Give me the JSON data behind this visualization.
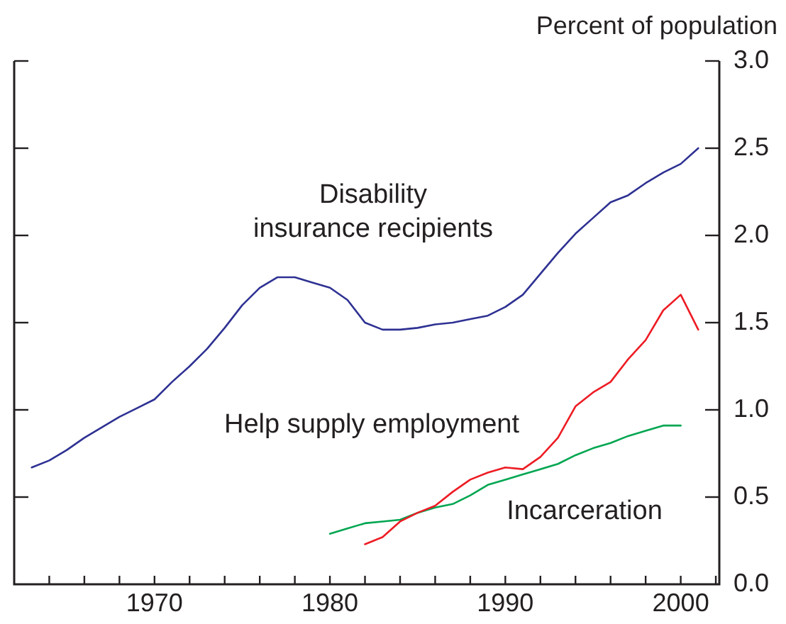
{
  "chart_data": {
    "type": "line",
    "ylabel": "Percent of population",
    "xlim": [
      1962,
      2002.2
    ],
    "xticks": [
      {
        "value": 1964,
        "label": null
      },
      {
        "value": 1966,
        "label": null
      },
      {
        "value": 1968,
        "label": null
      },
      1970,
      {
        "value": 1972,
        "label": null
      },
      {
        "value": 1974,
        "label": null
      },
      {
        "value": 1976,
        "label": null
      },
      {
        "value": 1978,
        "label": null
      },
      1980,
      {
        "value": 1982,
        "label": null
      },
      {
        "value": 1984,
        "label": null
      },
      {
        "value": 1986,
        "label": null
      },
      {
        "value": 1988,
        "label": null
      },
      1990,
      {
        "value": 1992,
        "label": null
      },
      {
        "value": 1994,
        "label": null
      },
      {
        "value": 1996,
        "label": null
      },
      {
        "value": 1998,
        "label": null
      },
      2000,
      {
        "value": 2002,
        "label": null
      }
    ],
    "ylim": [
      0,
      3
    ],
    "yticks": [
      {
        "value": 0,
        "label": "0.0"
      },
      0.5,
      {
        "value": 1,
        "label": "1.0"
      },
      1.5,
      {
        "value": 2,
        "label": "2.0"
      },
      2.5,
      {
        "value": 3,
        "label": "3.0"
      }
    ],
    "grid": false,
    "legend": false,
    "marker": "none",
    "line_style": "solid",
    "series": [
      {
        "name": "Disability insurance recipients",
        "color": "#2e3192",
        "x": [
          1963,
          1964,
          1965,
          1966,
          1967,
          1968,
          1969,
          1970,
          1971,
          1972,
          1973,
          1974,
          1975,
          1976,
          1977,
          1978,
          1979,
          1980,
          1981,
          1982,
          1983,
          1984,
          1985,
          1986,
          1987,
          1988,
          1989,
          1990,
          1991,
          1992,
          1993,
          1994,
          1995,
          1996,
          1997,
          1998,
          1999,
          2000,
          2001
        ],
        "values": [
          0.67,
          0.71,
          0.77,
          0.84,
          0.9,
          0.96,
          1.01,
          1.06,
          1.16,
          1.25,
          1.35,
          1.47,
          1.6,
          1.7,
          1.76,
          1.76,
          1.73,
          1.7,
          1.63,
          1.5,
          1.46,
          1.46,
          1.47,
          1.49,
          1.5,
          1.52,
          1.54,
          1.59,
          1.66,
          1.78,
          1.9,
          2.01,
          2.1,
          2.19,
          2.23,
          2.3,
          2.36,
          2.41,
          2.5
        ]
      },
      {
        "name": "Help supply employment",
        "color": "#ed1c24",
        "x": [
          1982,
          1983,
          1984,
          1985,
          1986,
          1987,
          1988,
          1989,
          1990,
          1991,
          1992,
          1993,
          1994,
          1995,
          1996,
          1997,
          1998,
          1999,
          2000,
          2001
        ],
        "values": [
          0.23,
          0.27,
          0.36,
          0.41,
          0.45,
          0.53,
          0.6,
          0.64,
          0.67,
          0.66,
          0.73,
          0.84,
          1.02,
          1.1,
          1.16,
          1.29,
          1.4,
          1.57,
          1.66,
          1.46
        ]
      },
      {
        "name": "Incarceration",
        "color": "#00a651",
        "x": [
          1980,
          1981,
          1982,
          1983,
          1984,
          1985,
          1986,
          1987,
          1988,
          1989,
          1990,
          1991,
          1992,
          1993,
          1994,
          1995,
          1996,
          1997,
          1998,
          1999,
          2000
        ],
        "values": [
          0.29,
          0.32,
          0.35,
          0.36,
          0.37,
          0.41,
          0.44,
          0.46,
          0.51,
          0.57,
          0.6,
          0.63,
          0.66,
          0.69,
          0.74,
          0.78,
          0.81,
          0.85,
          0.88,
          0.91,
          0.91
        ]
      }
    ]
  }
}
